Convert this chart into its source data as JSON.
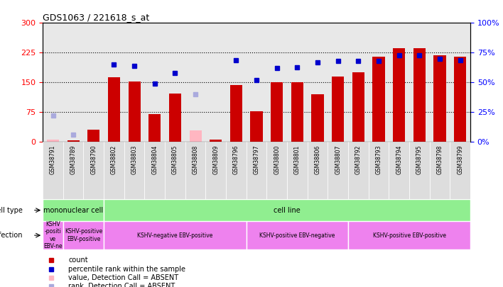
{
  "title": "GDS1063 / 221618_s_at",
  "samples": [
    "GSM38791",
    "GSM38789",
    "GSM38790",
    "GSM38802",
    "GSM38803",
    "GSM38804",
    "GSM38805",
    "GSM38808",
    "GSM38809",
    "GSM38796",
    "GSM38797",
    "GSM38800",
    "GSM38801",
    "GSM38806",
    "GSM38807",
    "GSM38792",
    "GSM38793",
    "GSM38794",
    "GSM38795",
    "GSM38798",
    "GSM38799"
  ],
  "count_values": [
    7,
    5,
    32,
    163,
    152,
    70,
    122,
    30,
    7,
    143,
    78,
    150,
    150,
    120,
    165,
    175,
    215,
    237,
    237,
    218,
    215
  ],
  "count_absent": [
    true,
    false,
    false,
    false,
    false,
    false,
    false,
    true,
    false,
    false,
    false,
    false,
    false,
    false,
    false,
    false,
    false,
    false,
    false,
    false,
    false
  ],
  "percentile_values": [
    null,
    null,
    null,
    65,
    64,
    49,
    58,
    null,
    null,
    69,
    52,
    62,
    63,
    67,
    68,
    68,
    68,
    73,
    73,
    70,
    69
  ],
  "percentile_absent": [
    22,
    6,
    null,
    null,
    null,
    null,
    null,
    40,
    null,
    null,
    null,
    null,
    null,
    null,
    null,
    null,
    null,
    null,
    null,
    null,
    null
  ],
  "ylim_left": [
    0,
    300
  ],
  "ylim_right": [
    0,
    100
  ],
  "yticks_left": [
    0,
    75,
    150,
    225,
    300
  ],
  "yticks_right": [
    0,
    25,
    50,
    75,
    100
  ],
  "bar_color": "#CC0000",
  "absent_bar_color": "#FFB6C1",
  "blue_marker_color": "#0000CC",
  "absent_marker_color": "#AAAADD",
  "background_color": "#ffffff"
}
